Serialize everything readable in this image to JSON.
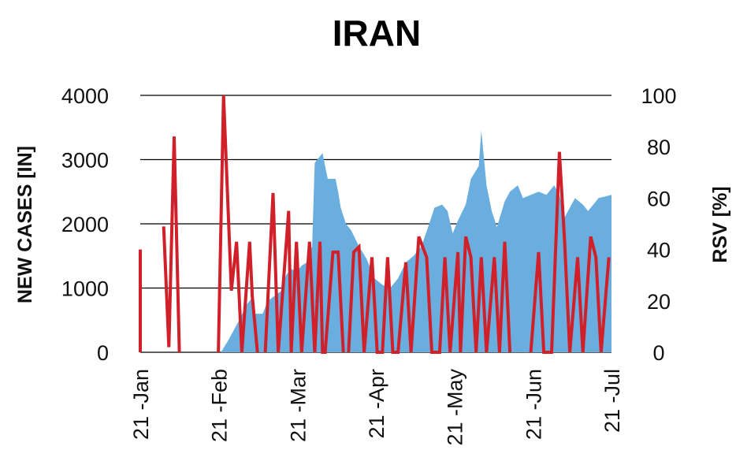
{
  "chart_data": {
    "type": "area+line",
    "title": "IRAN",
    "ylabel_left": "NEW CASES [IN]",
    "ylabel_right": "RSV [%]",
    "x_ticks": [
      "21 -Jan",
      "21 -Feb",
      "21 -Mar",
      "21 -Apr",
      "21 -May",
      "21 -Jun",
      "21 -Jul"
    ],
    "x_range": [
      "2021-01-21",
      "2021-07-21"
    ],
    "y_left_ticks": [
      "0",
      "1000",
      "2000",
      "3000",
      "4000"
    ],
    "y_left_range": [
      0,
      4000
    ],
    "y_right_ticks": [
      "0",
      "20",
      "40",
      "60",
      "80",
      "100"
    ],
    "y_right_range": [
      0,
      100
    ],
    "grid": "horizontal",
    "colors": {
      "cases": "#6aaee0",
      "rsv": "#d0202a",
      "grid": "#000000"
    },
    "series": [
      {
        "kind": "area",
        "axis": "left",
        "points": [
          [
            "2021-01-21",
            0
          ],
          [
            "2021-02-21",
            0
          ],
          [
            "2021-02-24",
            200
          ],
          [
            "2021-02-28",
            500
          ],
          [
            "2021-03-03",
            750
          ],
          [
            "2021-03-05",
            850
          ],
          [
            "2021-03-06",
            600
          ],
          [
            "2021-03-09",
            600
          ],
          [
            "2021-03-11",
            800
          ],
          [
            "2021-03-16",
            950
          ],
          [
            "2021-03-18",
            1200
          ],
          [
            "2021-03-20",
            1300
          ],
          [
            "2021-03-22",
            1250
          ],
          [
            "2021-03-24",
            1350
          ],
          [
            "2021-03-26",
            1400
          ],
          [
            "2021-03-28",
            1650
          ],
          [
            "2021-03-29",
            2950
          ],
          [
            "2021-04-01",
            3100
          ],
          [
            "2021-04-02",
            2900
          ],
          [
            "2021-04-03",
            2700
          ],
          [
            "2021-04-06",
            2700
          ],
          [
            "2021-04-07",
            2500
          ],
          [
            "2021-04-08",
            2250
          ],
          [
            "2021-04-10",
            2000
          ],
          [
            "2021-04-12",
            1900
          ],
          [
            "2021-04-15",
            1650
          ],
          [
            "2021-04-18",
            1450
          ],
          [
            "2021-04-21",
            1150
          ],
          [
            "2021-04-24",
            1050
          ],
          [
            "2021-04-27",
            1000
          ],
          [
            "2021-04-30",
            1150
          ],
          [
            "2021-05-03",
            1400
          ],
          [
            "2021-05-06",
            1500
          ],
          [
            "2021-05-09",
            1650
          ],
          [
            "2021-05-12",
            2000
          ],
          [
            "2021-05-14",
            2250
          ],
          [
            "2021-05-17",
            2300
          ],
          [
            "2021-05-19",
            2200
          ],
          [
            "2021-05-21",
            1850
          ],
          [
            "2021-05-23",
            2050
          ],
          [
            "2021-05-26",
            2300
          ],
          [
            "2021-05-28",
            2700
          ],
          [
            "2021-05-31",
            2900
          ],
          [
            "2021-06-01",
            3450
          ],
          [
            "2021-06-03",
            2600
          ],
          [
            "2021-06-05",
            2200
          ],
          [
            "2021-06-07",
            1950
          ],
          [
            "2021-06-10",
            2350
          ],
          [
            "2021-06-12",
            2500
          ],
          [
            "2021-06-15",
            2600
          ],
          [
            "2021-06-17",
            2400
          ],
          [
            "2021-06-20",
            2450
          ],
          [
            "2021-06-23",
            2500
          ],
          [
            "2021-06-26",
            2450
          ],
          [
            "2021-06-29",
            2600
          ],
          [
            "2021-07-01",
            2450
          ],
          [
            "2021-07-03",
            2100
          ],
          [
            "2021-07-05",
            2250
          ],
          [
            "2021-07-07",
            2400
          ],
          [
            "2021-07-10",
            2300
          ],
          [
            "2021-07-12",
            2200
          ],
          [
            "2021-07-14",
            2300
          ],
          [
            "2021-07-16",
            2400
          ],
          [
            "2021-07-21",
            2450
          ]
        ]
      },
      {
        "kind": "line",
        "axis": "right",
        "segments": [
          [
            [
              "2021-01-21",
              40
            ],
            [
              "2021-01-21",
              0
            ]
          ],
          [
            [
              "2021-01-30",
              49
            ],
            [
              "2021-02-01",
              2
            ],
            [
              "2021-02-03",
              84
            ],
            [
              "2021-02-05",
              0
            ]
          ],
          [
            [
              "2021-02-20",
              0
            ],
            [
              "2021-02-22",
              100
            ],
            [
              "2021-02-25",
              24
            ],
            [
              "2021-02-27",
              43
            ],
            [
              "2021-03-01",
              0
            ],
            [
              "2021-03-04",
              43
            ],
            [
              "2021-03-05",
              22
            ],
            [
              "2021-03-07",
              0
            ]
          ],
          [
            [
              "2021-03-10",
              0
            ],
            [
              "2021-03-13",
              62
            ],
            [
              "2021-03-15",
              0
            ],
            [
              "2021-03-19",
              55
            ],
            [
              "2021-03-20",
              0
            ],
            [
              "2021-03-22",
              43
            ],
            [
              "2021-03-24",
              0
            ],
            [
              "2021-03-27",
              43
            ],
            [
              "2021-03-29",
              0
            ],
            [
              "2021-03-31",
              43
            ],
            [
              "2021-04-01",
              0
            ],
            [
              "2021-04-02",
              0
            ],
            [
              "2021-04-05",
              39
            ],
            [
              "2021-04-07",
              39
            ],
            [
              "2021-04-09",
              0
            ]
          ],
          [
            [
              "2021-04-11",
              0
            ],
            [
              "2021-04-13",
              39
            ],
            [
              "2021-04-15",
              41
            ],
            [
              "2021-04-17",
              0
            ],
            [
              "2021-04-20",
              37
            ],
            [
              "2021-04-22",
              0
            ],
            [
              "2021-04-24",
              0
            ],
            [
              "2021-04-26",
              37
            ],
            [
              "2021-04-28",
              0
            ],
            [
              "2021-04-30",
              0
            ],
            [
              "2021-05-03",
              35
            ],
            [
              "2021-05-05",
              0
            ],
            [
              "2021-05-08",
              45
            ],
            [
              "2021-05-11",
              37
            ],
            [
              "2021-05-13",
              0
            ],
            [
              "2021-05-16",
              0
            ],
            [
              "2021-05-18",
              37
            ],
            [
              "2021-05-20",
              0
            ],
            [
              "2021-05-23",
              39
            ],
            [
              "2021-05-24",
              0
            ],
            [
              "2021-05-26",
              45
            ],
            [
              "2021-05-28",
              37
            ],
            [
              "2021-05-30",
              0
            ],
            [
              "2021-06-01",
              37
            ],
            [
              "2021-06-03",
              0
            ],
            [
              "2021-06-06",
              37
            ],
            [
              "2021-06-08",
              0
            ],
            [
              "2021-06-10",
              43
            ],
            [
              "2021-06-12",
              0
            ]
          ],
          [
            [
              "2021-06-20",
              0
            ],
            [
              "2021-06-23",
              39
            ],
            [
              "2021-06-25",
              0
            ],
            [
              "2021-06-28",
              0
            ],
            [
              "2021-07-01",
              78
            ],
            [
              "2021-07-03",
              43
            ],
            [
              "2021-07-05",
              0
            ],
            [
              "2021-07-08",
              37
            ],
            [
              "2021-07-10",
              0
            ],
            [
              "2021-07-13",
              45
            ],
            [
              "2021-07-15",
              37
            ],
            [
              "2021-07-17",
              0
            ],
            [
              "2021-07-20",
              37
            ]
          ]
        ]
      }
    ]
  }
}
